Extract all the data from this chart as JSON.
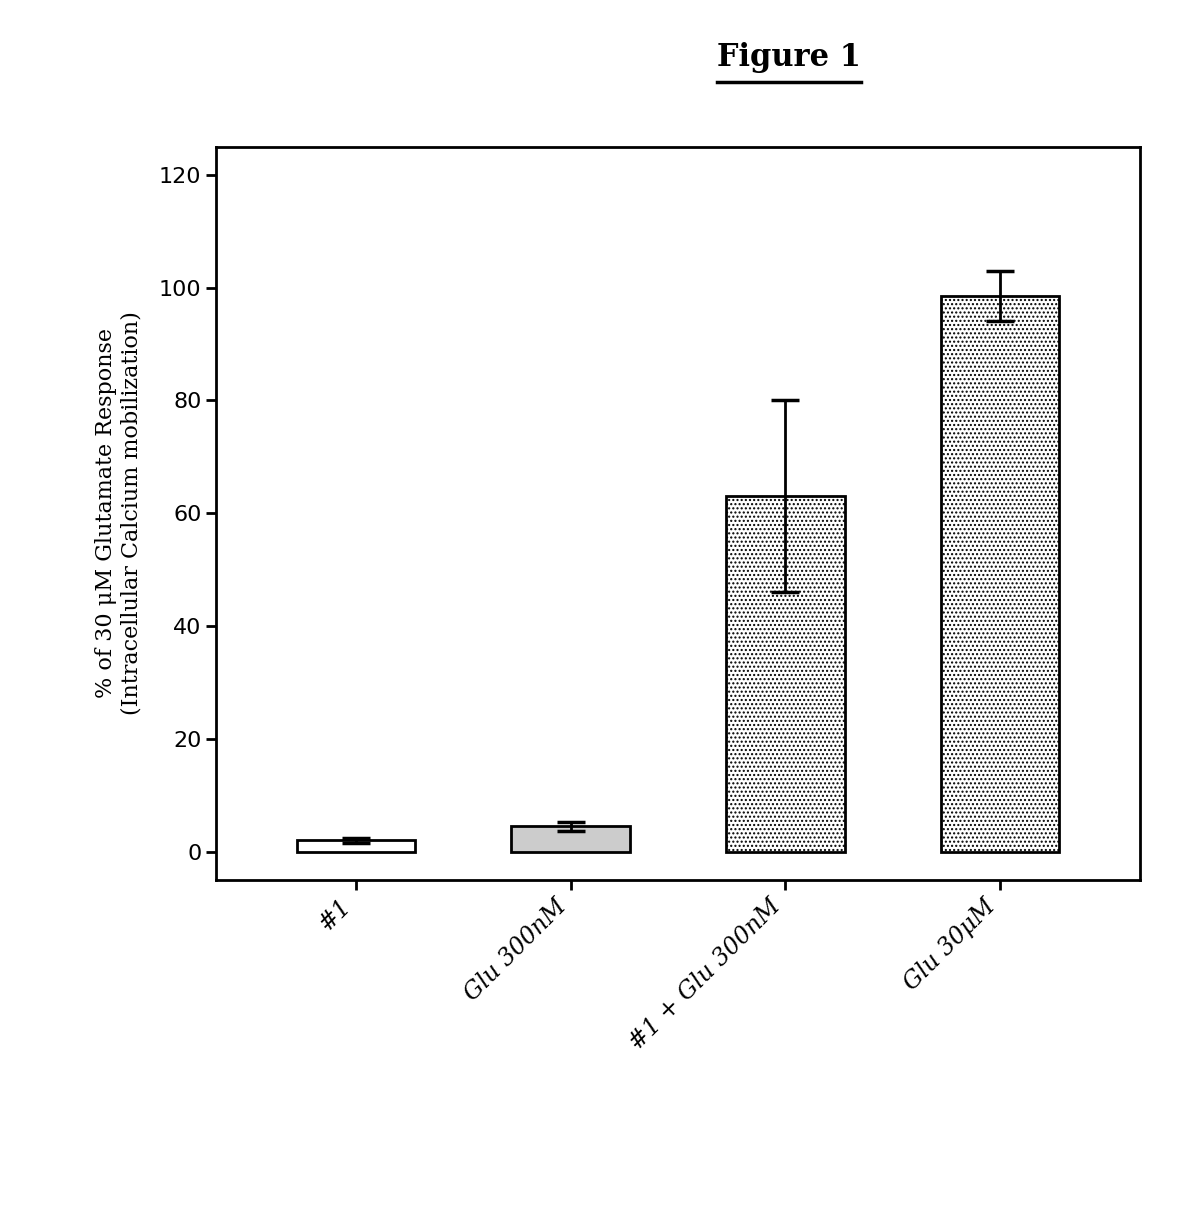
{
  "title": "Figure 1",
  "categories": [
    "#1",
    "Glu 300nM",
    "#1 + Glu 300nM",
    "Glu 30μM"
  ],
  "values": [
    2.0,
    4.5,
    63.0,
    98.5
  ],
  "errors": [
    0.5,
    0.8,
    17.0,
    4.5
  ],
  "ylabel_line1": "% of 30 μM Glutamate Response",
  "ylabel_line2": "(Intracellular Calcium mobilization)",
  "ylim": [
    -5,
    125
  ],
  "yticks": [
    0,
    20,
    40,
    60,
    80,
    100,
    120
  ],
  "bar_facecolors": [
    "white",
    "#cccccc",
    "white",
    "white"
  ],
  "bar_edge_colors": [
    "black",
    "black",
    "black",
    "black"
  ],
  "use_dots": [
    false,
    false,
    true,
    true
  ],
  "background_color": "white",
  "title_fontsize": 22,
  "axis_label_fontsize": 16,
  "tick_fontsize": 16,
  "xtick_fontsize": 17
}
